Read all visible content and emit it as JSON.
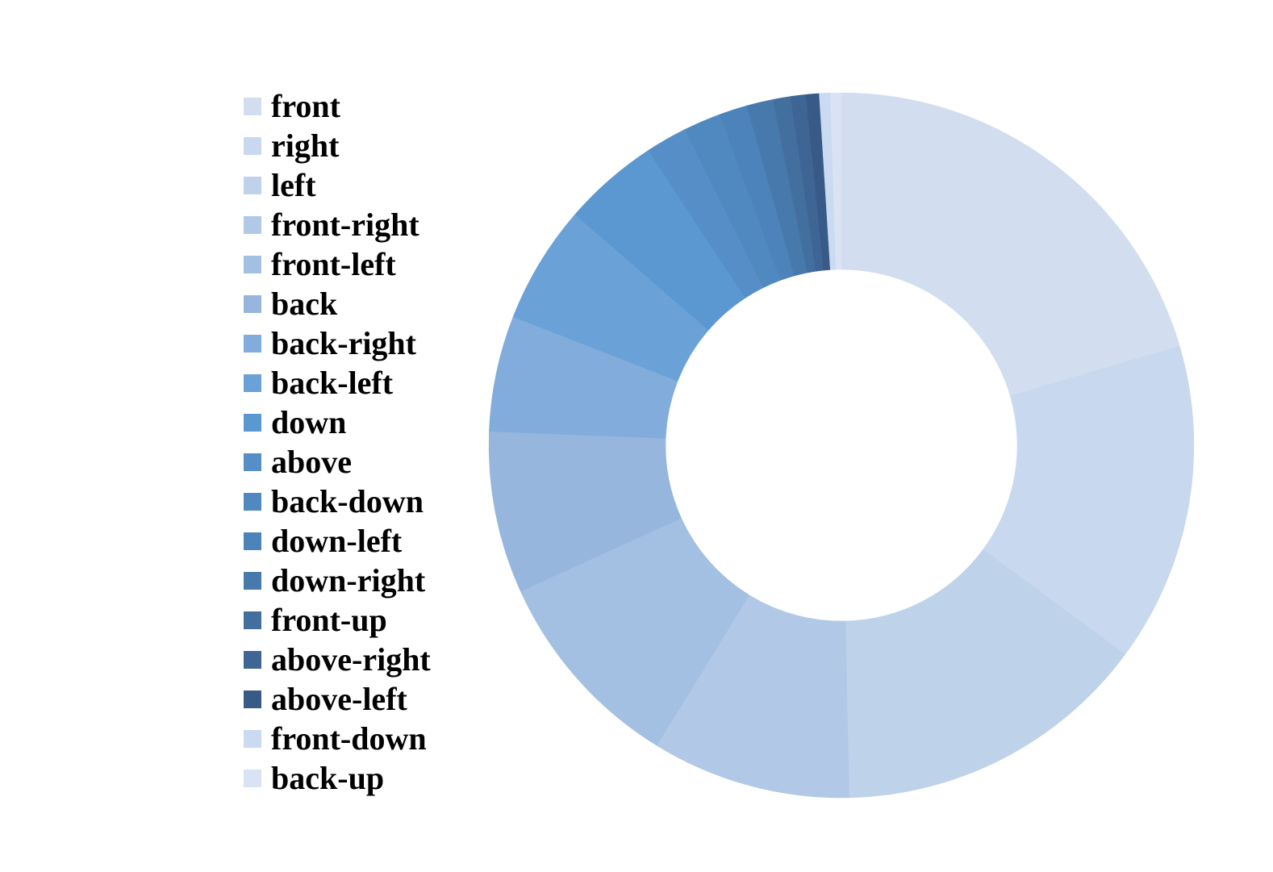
{
  "chart_data": {
    "type": "pie",
    "variant": "donut",
    "legend_position": "left",
    "title": "",
    "categories": [
      "front",
      "right",
      "left",
      "front-right",
      "front-left",
      "back",
      "back-right",
      "back-left",
      "down",
      "above",
      "back-down",
      "down-left",
      "down-right",
      "front-up",
      "above-right",
      "above-left",
      "front-down",
      "back-up"
    ],
    "values": [
      20.4,
      14.6,
      14.5,
      9.1,
      9.4,
      7.4,
      5.3,
      5.4,
      4.4,
      1.9,
      1.7,
      1.3,
      1.2,
      0.8,
      0.7,
      0.6,
      0.5,
      0.5
    ],
    "colors": [
      "#d2deef",
      "#c8d8ee",
      "#bed2ea",
      "#b1c8e7",
      "#a3bfe2",
      "#96b6de",
      "#82acdb",
      "#6aa2d7",
      "#5b97d0",
      "#568fc7",
      "#5089c0",
      "#4b83ba",
      "#4779ad",
      "#436f9f",
      "#3e6594",
      "#385a86",
      "#cadaf0",
      "#d9e3f3"
    ]
  }
}
